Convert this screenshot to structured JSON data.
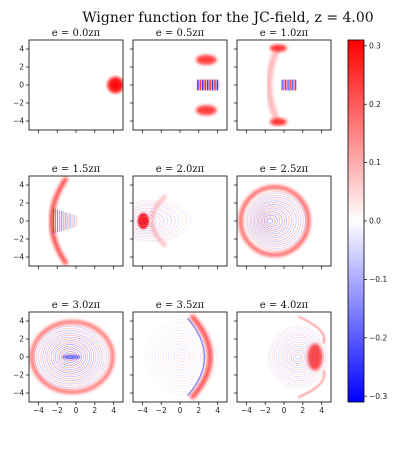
{
  "chart_data": {
    "type": "heatmap",
    "title": "Wigner function for the JC-field, $z = 4.00$",
    "title_display": "Wigner function for the JC-field, z = 4.00",
    "grid": false,
    "xlim": [
      -5,
      5
    ],
    "ylim": [
      -5,
      5
    ],
    "x_ticks": [
      "−4",
      "−2",
      "0",
      "2",
      "4"
    ],
    "y_ticks": [
      "4",
      "2",
      "0",
      "−2",
      "−4"
    ],
    "colormap": [
      "#0000ff",
      "#ffffff",
      "#ff0000"
    ],
    "colorbar": {
      "range": [
        -0.31,
        0.31
      ],
      "ticks": [
        0.3,
        0.2,
        0.1,
        0.0,
        -0.1,
        -0.2,
        -0.3
      ],
      "tick_labels": [
        "0.3",
        "0.2",
        "0.1",
        "0.0",
        "−0.1",
        "−0.2",
        "−0.3"
      ]
    },
    "panels": [
      {
        "title": "e = 0.0zπ",
        "e_over_zpi": 0.0
      },
      {
        "title": "e = 0.5zπ",
        "e_over_zpi": 0.5
      },
      {
        "title": "e = 1.0zπ",
        "e_over_zpi": 1.0
      },
      {
        "title": "e = 1.5zπ",
        "e_over_zpi": 1.5
      },
      {
        "title": "e = 2.0zπ",
        "e_over_zpi": 2.0
      },
      {
        "title": "e = 2.5zπ",
        "e_over_zpi": 2.5
      },
      {
        "title": "e = 3.0zπ",
        "e_over_zpi": 3.0
      },
      {
        "title": "e = 3.5zπ",
        "e_over_zpi": 3.5
      },
      {
        "title": "e = 4.0zπ",
        "e_over_zpi": 4.0
      }
    ]
  }
}
